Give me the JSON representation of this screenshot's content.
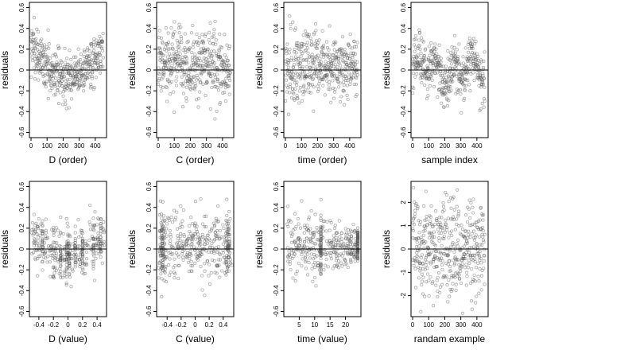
{
  "figure": {
    "background": "#ffffff",
    "point_color": "#555555",
    "reference_line_color": "#000000"
  },
  "chart_data": [
    {
      "type": "scatter",
      "xlabel": "D (order)",
      "ylabel": "residuals",
      "xlim": [
        -10,
        470
      ],
      "ylim": [
        -0.65,
        0.65
      ],
      "xticks": [
        0,
        100,
        200,
        300,
        400
      ],
      "yticks": [
        -0.6,
        -0.4,
        -0.2,
        0.0,
        0.2,
        0.4,
        0.6
      ],
      "hline": 0,
      "n": 450,
      "x_range": [
        0,
        450
      ],
      "x_kind": "index",
      "pattern": "U-shaped: residuals high (~0.2-0.4) at both ends, around -0.05 in the middle",
      "x": [],
      "y": []
    },
    {
      "type": "scatter",
      "xlabel": "C (order)",
      "ylabel": "residuals",
      "xlim": [
        -10,
        470
      ],
      "ylim": [
        -0.65,
        0.65
      ],
      "xticks": [
        0,
        100,
        200,
        300,
        400
      ],
      "yticks": [
        -0.6,
        -0.4,
        -0.2,
        0.0,
        0.2,
        0.4,
        0.6
      ],
      "hline": 0,
      "n": 450,
      "x_range": [
        0,
        450
      ],
      "x_kind": "index",
      "pattern": "no trend, roughly uniform spread around 0",
      "x": [],
      "y": []
    },
    {
      "type": "scatter",
      "xlabel": "time (order)",
      "ylabel": "residuals",
      "xlim": [
        -10,
        470
      ],
      "ylim": [
        -0.65,
        0.65
      ],
      "xticks": [
        0,
        100,
        200,
        300,
        400
      ],
      "yticks": [
        -0.6,
        -0.4,
        -0.2,
        0.0,
        0.2,
        0.4,
        0.6
      ],
      "hline": 0,
      "n": 450,
      "x_range": [
        0,
        450
      ],
      "x_kind": "index",
      "pattern": "wide spread at low order, narrowing toward high order",
      "x": [],
      "y": []
    },
    {
      "type": "scatter",
      "xlabel": "sample index",
      "ylabel": "residuals",
      "xlim": [
        -10,
        470
      ],
      "ylim": [
        -0.65,
        0.65
      ],
      "xticks": [
        0,
        100,
        200,
        300,
        400
      ],
      "yticks": [
        -0.6,
        -0.4,
        -0.2,
        0.0,
        0.2,
        0.4,
        0.6
      ],
      "hline": 0,
      "n": 450,
      "x_range": [
        0,
        450
      ],
      "x_kind": "index",
      "pattern": "blocky groups of correlated residuals",
      "x": [],
      "y": []
    },
    {
      "type": "scatter",
      "xlabel": "D (value)",
      "ylabel": "residuals",
      "xlim": [
        -0.53,
        0.53
      ],
      "ylim": [
        -0.65,
        0.65
      ],
      "xticks": [
        -0.4,
        -0.2,
        0.0,
        0.2,
        0.4
      ],
      "yticks": [
        -0.6,
        -0.4,
        -0.2,
        0.0,
        0.2,
        0.4,
        0.6
      ],
      "hline": 0,
      "n": 450,
      "x_range": [
        -0.5,
        0.5
      ],
      "x_kind": "value",
      "pattern": "U-shaped with vertical streaks at repeated values near 0",
      "x": [],
      "y": []
    },
    {
      "type": "scatter",
      "xlabel": "C (value)",
      "ylabel": "residuals",
      "xlim": [
        -0.55,
        0.55
      ],
      "ylim": [
        -0.65,
        0.65
      ],
      "xticks": [
        -0.4,
        -0.2,
        0.0,
        0.2,
        0.4
      ],
      "yticks": [
        -0.6,
        -0.4,
        -0.2,
        0.0,
        0.2,
        0.4,
        0.6
      ],
      "hline": 0,
      "n": 450,
      "x_range": [
        -0.5,
        0.5
      ],
      "x_kind": "value",
      "pattern": "vertical streaks at -0.5 and 0.5 ends, no trend",
      "x": [],
      "y": []
    },
    {
      "type": "scatter",
      "xlabel": "time (value)",
      "ylabel": "residuals",
      "xlim": [
        0,
        25
      ],
      "ylim": [
        -0.65,
        0.65
      ],
      "xticks": [
        5,
        10,
        15,
        20
      ],
      "yticks": [
        -0.6,
        -0.4,
        -0.2,
        0.0,
        0.2,
        0.4,
        0.6
      ],
      "hline": 0,
      "n": 450,
      "x_range": [
        1,
        24
      ],
      "x_kind": "value",
      "pattern": "vertical streaks at ~12 and ~24, spread narrowing with time",
      "x": [],
      "y": []
    },
    {
      "type": "scatter",
      "xlabel": "randam example",
      "ylabel": "residuals",
      "xlim": [
        -10,
        470
      ],
      "ylim": [
        -2.9,
        2.9
      ],
      "xticks": [
        0,
        100,
        200,
        300,
        400
      ],
      "yticks": [
        -2,
        -1,
        0,
        1,
        2
      ],
      "hline": 0,
      "n": 450,
      "x_range": [
        0,
        450
      ],
      "x_kind": "index",
      "pattern": "pure random noise, standard normal",
      "x": [],
      "y": []
    }
  ]
}
